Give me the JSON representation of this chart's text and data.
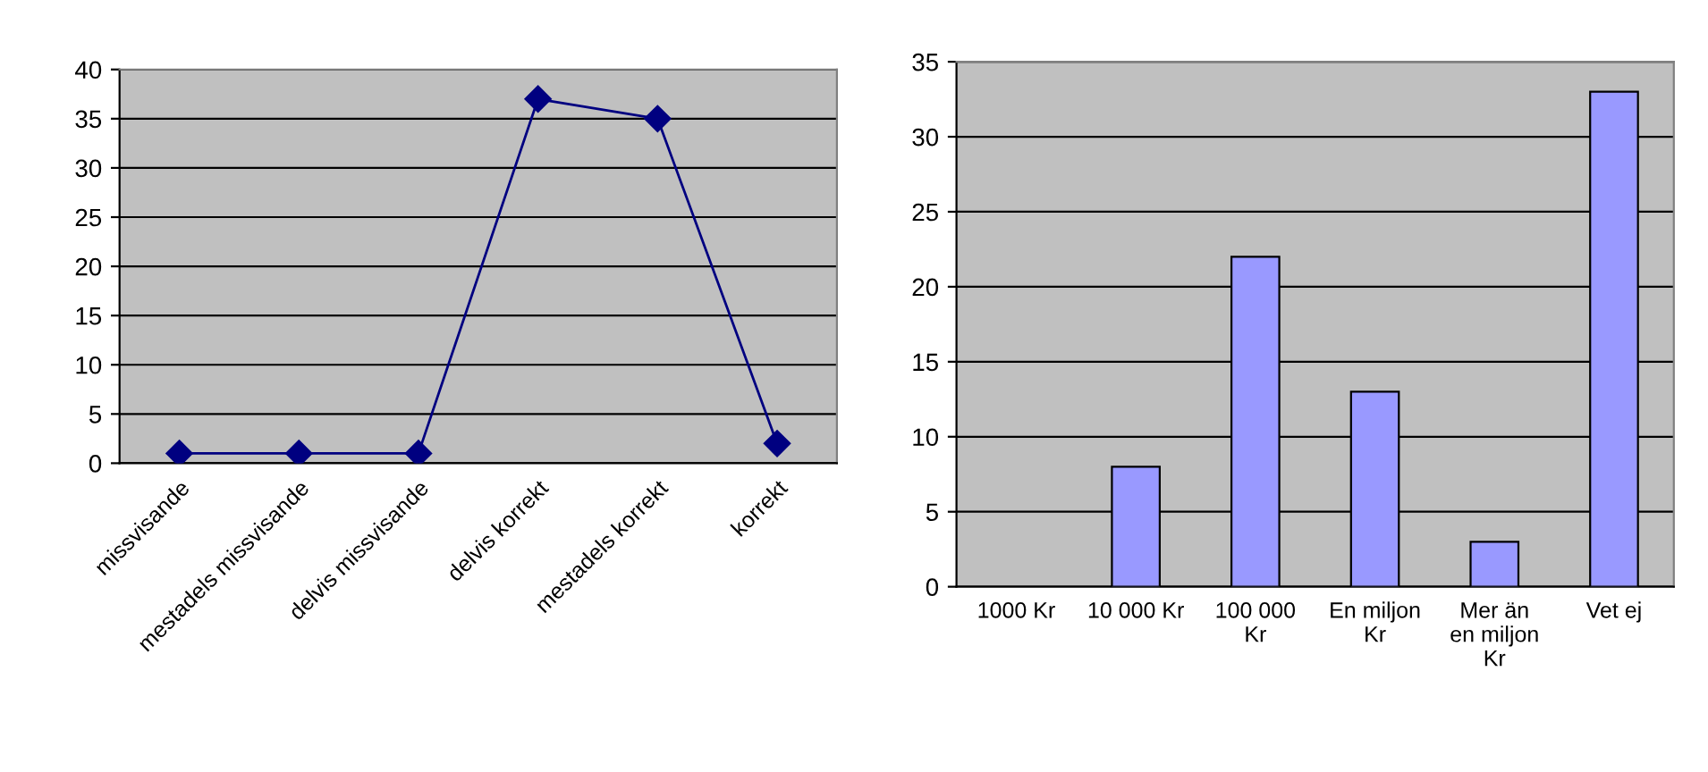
{
  "chart_data": [
    {
      "type": "line",
      "categories": [
        "missvisande",
        "mestadels missvisande",
        "delvis missvisande",
        "delvis korrekt",
        "mestadels korrekt",
        "korrekt"
      ],
      "series": [
        {
          "color": "#000080",
          "values": [
            1,
            1,
            1,
            37,
            35,
            2
          ]
        }
      ],
      "ylim": [
        0,
        40
      ],
      "yticks": [
        0,
        5,
        10,
        15,
        20,
        25,
        30,
        35,
        40
      ],
      "grid": "y",
      "marker": "diamond",
      "line_style": "solid"
    },
    {
      "type": "bar",
      "categories": [
        "1000 Kr",
        "10 000 Kr",
        "100 000\nKr",
        "En miljon\nKr",
        "Mer än\nen miljon\nKr",
        "Vet ej"
      ],
      "series": [
        {
          "color": "#9999ff",
          "values": [
            0,
            8,
            22,
            13,
            3,
            33
          ]
        }
      ],
      "ylim": [
        0,
        35
      ],
      "yticks": [
        0,
        5,
        10,
        15,
        20,
        25,
        30,
        35
      ],
      "grid": "y"
    }
  ]
}
